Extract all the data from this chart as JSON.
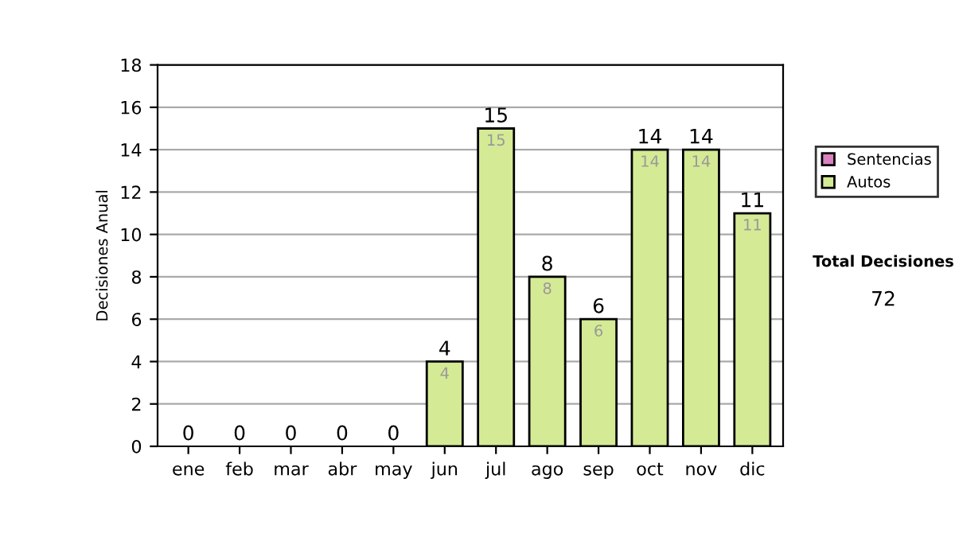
{
  "chart_data": {
    "type": "bar",
    "ylabel": "Decisiones Anual",
    "stacked": true,
    "categories": [
      "ene",
      "feb",
      "mar",
      "abr",
      "may",
      "jun",
      "jul",
      "ago",
      "sep",
      "oct",
      "nov",
      "dic"
    ],
    "series": [
      {
        "name": "Sentencias",
        "color": "#d982c0",
        "values": [
          0,
          0,
          0,
          0,
          0,
          0,
          0,
          0,
          0,
          0,
          0,
          0
        ]
      },
      {
        "name": "Autos",
        "color": "#d5ea95",
        "values": [
          0,
          0,
          0,
          0,
          0,
          4,
          15,
          8,
          6,
          14,
          14,
          11
        ],
        "value_labels": [
          null,
          null,
          null,
          null,
          null,
          "4",
          "15",
          "8",
          "6",
          "14",
          "14",
          "11"
        ]
      }
    ],
    "totals": [
      "0",
      "0",
      "0",
      "0",
      "0",
      "4",
      "15",
      "8",
      "6",
      "14",
      "14",
      "11"
    ],
    "ylim": [
      0,
      18
    ],
    "yticks": [
      0,
      2,
      4,
      6,
      8,
      10,
      12,
      14,
      16,
      18
    ],
    "grid": "y",
    "legend": "right",
    "annotations": [
      "Total Decisiones",
      "72"
    ]
  }
}
